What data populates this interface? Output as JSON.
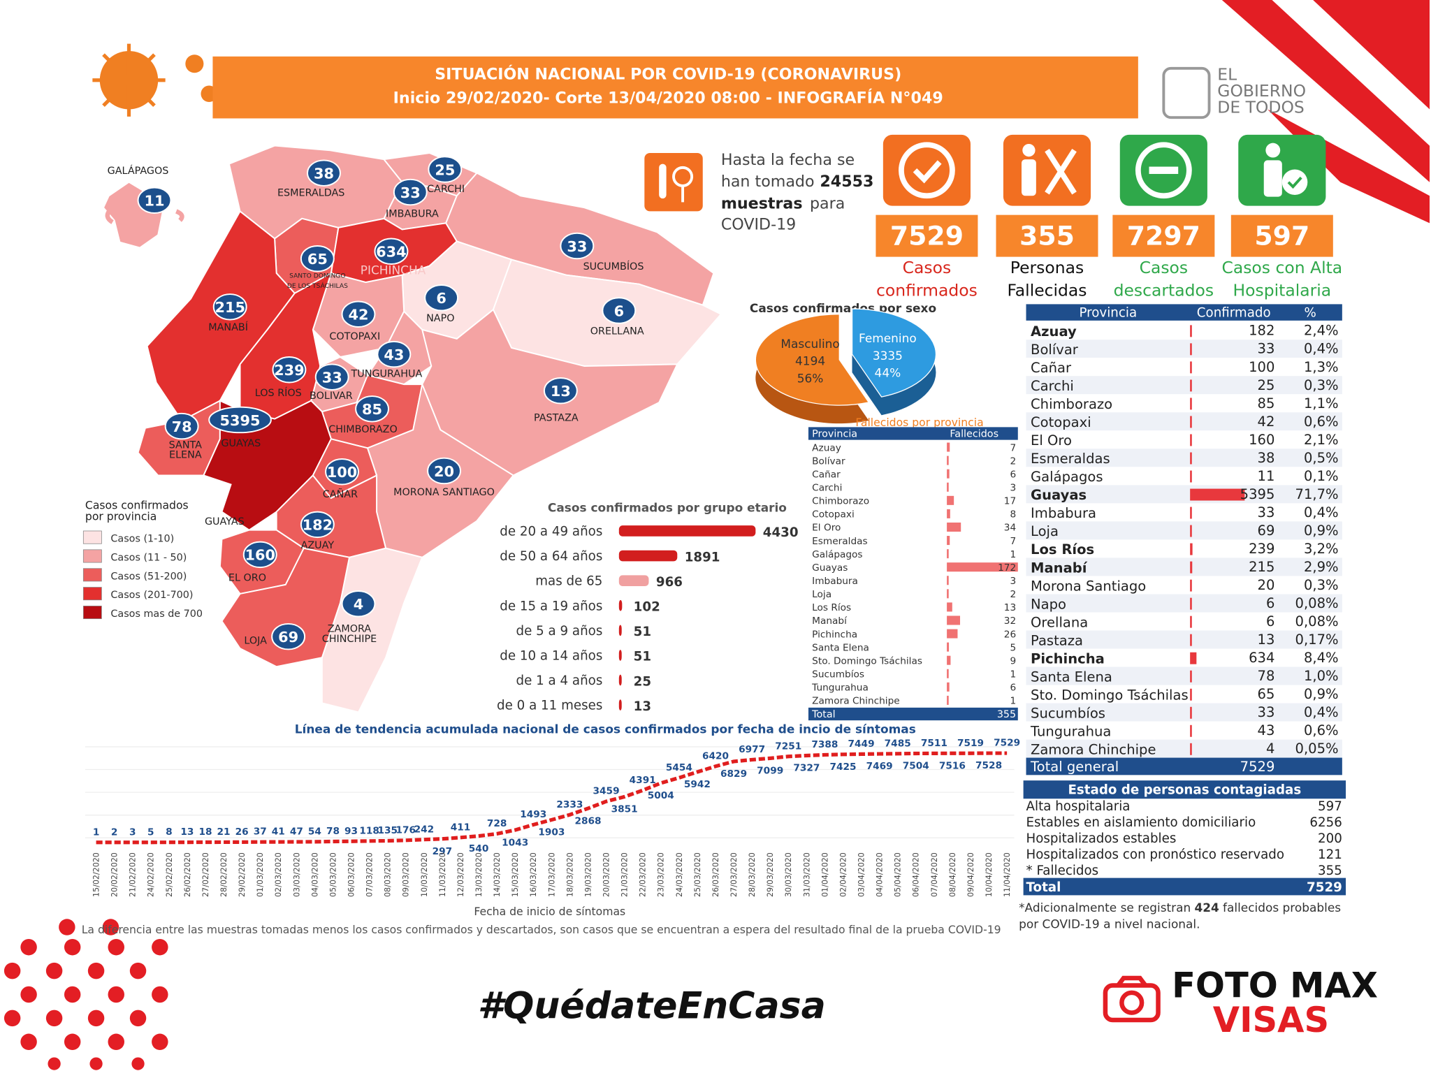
{
  "header": {
    "title": "SITUACIÓN NACIONAL POR  COVID-19 (CORONAVIRUS)",
    "subtitle": "Inicio 29/02/2020- Corte 13/04/2020 08:00  - INFOGRAFÍA N°049"
  },
  "logo": {
    "lines": [
      "EL",
      "GOBIERNO",
      "DE TODOS"
    ]
  },
  "samples": {
    "line1": "Hasta la fecha se",
    "line2": "han tomado",
    "value": 24553,
    "unit": "muestras",
    "after": "para",
    "line4": "COVID-19"
  },
  "stats": [
    {
      "value": 7529,
      "label": [
        "Casos",
        "confirmados"
      ],
      "color": "#f26f21",
      "label_color": "#d8261c"
    },
    {
      "value": 355,
      "label": [
        "Personas",
        "Fallecidas"
      ],
      "color": "#f26f21",
      "label_color": "#111111"
    },
    {
      "value": 7297,
      "label": [
        "Casos",
        "descartados"
      ],
      "color": "#2fa84a",
      "label_color": "#2fa84a"
    },
    {
      "value": 597,
      "label": [
        "Casos con Alta",
        "Hospitalaria"
      ],
      "color": "#2fa84a",
      "label_color": "#2fa84a"
    }
  ],
  "map": {
    "legend_title": [
      "Casos confirmados",
      "por provincia"
    ],
    "legend": [
      {
        "label": "Casos (1-10)",
        "range": [
          1,
          10
        ],
        "color": "#fde3e3"
      },
      {
        "label": "Casos (11 - 50)",
        "range": [
          11,
          50
        ],
        "color": "#f4a3a3"
      },
      {
        "label": "Casos (51-200)",
        "range": [
          51,
          200
        ],
        "color": "#ec5d5b"
      },
      {
        "label": "Casos (201-700)",
        "range": [
          201,
          700
        ],
        "color": "#e3302f"
      },
      {
        "label": "Casos mas de 700",
        "range": [
          700
        ],
        "color": "#b80d12"
      }
    ],
    "gulf_label": "GUAYAS",
    "provinces": [
      {
        "name": "GALÁPAGOS",
        "value": 11
      },
      {
        "name": "ESMERALDAS",
        "value": 38
      },
      {
        "name": "CARCHI",
        "value": 25
      },
      {
        "name": "IMBABURA",
        "value": 33
      },
      {
        "name": "SUCUMBÍOS",
        "value": 33
      },
      {
        "name": [
          "SANTO DOMINGO",
          "DE LOS TSÁCHILAS"
        ],
        "value": 65
      },
      {
        "name": "PICHINCHA",
        "value": 634
      },
      {
        "name": "NAPO",
        "value": 6
      },
      {
        "name": "ORELLANA",
        "value": 6
      },
      {
        "name": "MANABÍ",
        "value": 215
      },
      {
        "name": "COTOPAXI",
        "value": 42
      },
      {
        "name": "TUNGURAHUA",
        "value": 43
      },
      {
        "name": "LOS RÍOS",
        "value": 239
      },
      {
        "name": "BOLIVAR",
        "value": 33
      },
      {
        "name": "PASTAZA",
        "value": 13
      },
      {
        "name": "CHIMBORAZO",
        "value": 85
      },
      {
        "name": [
          "SANTA",
          "ELENA"
        ],
        "value": 78
      },
      {
        "name": "GUAYAS",
        "value": 5395
      },
      {
        "name": "CAÑAR",
        "value": 100
      },
      {
        "name": "MORONA SANTIAGO",
        "value": 20
      },
      {
        "name": "AZUAY",
        "value": 182
      },
      {
        "name": "EL ORO",
        "value": 160
      },
      {
        "name": [
          "ZAMORA",
          "CHINCHIPE"
        ],
        "value": 4
      },
      {
        "name": "LOJA",
        "value": 69
      }
    ]
  },
  "chart_data": [
    {
      "type": "pie",
      "title": "Casos confirmados por sexo",
      "categories": [
        "Masculino",
        "Femenino"
      ],
      "values": [
        4194,
        3335
      ],
      "percentages": [
        {
          "value": 56,
          "label": "56%"
        },
        {
          "value": 44,
          "label": "44%"
        }
      ],
      "colors": [
        "#f07f22",
        "#2e9be0"
      ]
    },
    {
      "type": "bar",
      "title": "Casos confirmados por grupo etario",
      "categories": [
        "de 20 a 49 años",
        "de 50 a 64 años",
        "mas de 65",
        "de 15 a 19 años",
        "de 5 a 9 años",
        "de 10 a 14 años",
        "de 1 a 4 años",
        "de 0 a 11 meses"
      ],
      "values": [
        4430,
        1891,
        966,
        102,
        51,
        51,
        25,
        13
      ],
      "color": "#d21e1e"
    },
    {
      "type": "bar",
      "title": "Fallecidos por provincia",
      "headers": [
        "Provincia",
        "Fallecidos"
      ],
      "categories": [
        "Azuay",
        "Bolívar",
        "Cañar",
        "Carchi",
        "Chimborazo",
        "Cotopaxi",
        "El Oro",
        "Esmeraldas",
        "Galápagos",
        "Guayas",
        "Imbabura",
        "Loja",
        "Los Ríos",
        "Manabí",
        "Pichincha",
        "Santa Elena",
        "Sto. Domingo Tsáchilas",
        "Sucumbíos",
        "Tungurahua",
        "Zamora Chinchipe"
      ],
      "values": [
        7,
        2,
        6,
        3,
        17,
        8,
        34,
        7,
        1,
        172,
        3,
        2,
        13,
        32,
        26,
        5,
        9,
        1,
        6,
        1
      ],
      "total_label": "Total",
      "total": 355,
      "color": "#f07272"
    },
    {
      "type": "line",
      "title": "Línea de tendencia acumulada nacional de casos confirmados por fecha de incio de síntomas",
      "x_label": "Fecha de inicio de síntomas",
      "color": "#e01e1e",
      "x": [
        "15/02/2020",
        "20/02/2020",
        "21/02/2020",
        "24/02/2020",
        "25/02/2020",
        "26/02/2020",
        "27/02/2020",
        "28/02/2020",
        "29/02/2020",
        "01/03/2020",
        "02/03/2020",
        "03/03/2020",
        "04/03/2020",
        "05/03/2020",
        "06/03/2020",
        "07/03/2020",
        "08/03/2020",
        "09/03/2020",
        "10/03/2020",
        "11/03/2020",
        "12/03/2020",
        "13/03/2020",
        "14/03/2020",
        "15/03/2020",
        "16/03/2020",
        "17/03/2020",
        "18/03/2020",
        "19/03/2020",
        "20/03/2020",
        "21/03/2020",
        "22/03/2020",
        "23/03/2020",
        "24/03/2020",
        "25/03/2020",
        "26/03/2020",
        "27/03/2020",
        "28/03/2020",
        "29/03/2020",
        "30/03/2020",
        "31/03/2020",
        "01/04/2020",
        "02/04/2020",
        "03/04/2020",
        "04/04/2020",
        "05/04/2020",
        "06/04/2020",
        "07/04/2020",
        "08/04/2020",
        "09/04/2020",
        "10/04/2020",
        "11/04/2020"
      ],
      "values": [
        1,
        2,
        3,
        5,
        8,
        13,
        18,
        21,
        26,
        37,
        41,
        47,
        54,
        78,
        93,
        118,
        135,
        176,
        242,
        297,
        411,
        540,
        728,
        1043,
        1493,
        1903,
        2333,
        2868,
        3459,
        3851,
        4391,
        5004,
        5454,
        5942,
        6420,
        6829,
        6977,
        7099,
        7251,
        7327,
        7388,
        7425,
        7449,
        7469,
        7485,
        7504,
        7511,
        7516,
        7519,
        7528,
        7529
      ]
    }
  ],
  "table": {
    "headers": [
      "Provincia",
      "Confirmado",
      "%"
    ],
    "rows": [
      {
        "name": "Azuay",
        "confirmed": 182,
        "percent": "2,4%"
      },
      {
        "name": "Bolívar",
        "confirmed": 33,
        "percent": "0,4%"
      },
      {
        "name": "Cañar",
        "confirmed": 100,
        "percent": "1,3%"
      },
      {
        "name": "Carchi",
        "confirmed": 25,
        "percent": "0,3%"
      },
      {
        "name": "Chimborazo",
        "confirmed": 85,
        "percent": "1,1%"
      },
      {
        "name": "Cotopaxi",
        "confirmed": 42,
        "percent": "0,6%"
      },
      {
        "name": "El Oro",
        "confirmed": 160,
        "percent": "2,1%"
      },
      {
        "name": "Esmeraldas",
        "confirmed": 38,
        "percent": "0,5%"
      },
      {
        "name": "Galápagos",
        "confirmed": 11,
        "percent": "0,1%"
      },
      {
        "name": "Guayas",
        "confirmed": 5395,
        "percent": "71,7%"
      },
      {
        "name": "Imbabura",
        "confirmed": 33,
        "percent": "0,4%"
      },
      {
        "name": "Loja",
        "confirmed": 69,
        "percent": "0,9%"
      },
      {
        "name": "Los Ríos",
        "confirmed": 239,
        "percent": "3,2%"
      },
      {
        "name": "Manabí",
        "confirmed": 215,
        "percent": "2,9%"
      },
      {
        "name": "Morona Santiago",
        "confirmed": 20,
        "percent": "0,3%"
      },
      {
        "name": "Napo",
        "confirmed": 6,
        "percent": "0,08%"
      },
      {
        "name": "Orellana",
        "confirmed": 6,
        "percent": "0,08%"
      },
      {
        "name": "Pastaza",
        "confirmed": 13,
        "percent": "0,17%"
      },
      {
        "name": "Pichincha",
        "confirmed": 634,
        "percent": "8,4%"
      },
      {
        "name": "Santa Elena",
        "confirmed": 78,
        "percent": "1,0%"
      },
      {
        "name": "Sto. Domingo Tsáchilas",
        "confirmed": 65,
        "percent": "0,9%"
      },
      {
        "name": "Sucumbíos",
        "confirmed": 33,
        "percent": "0,4%"
      },
      {
        "name": "Tungurahua",
        "confirmed": 43,
        "percent": "0,6%"
      },
      {
        "name": "Zamora Chinchipe",
        "confirmed": 4,
        "percent": "0,05%"
      }
    ],
    "total_label": "Total general",
    "total": 7529
  },
  "status": {
    "title": "Estado de personas contagiadas",
    "rows": [
      {
        "label": "Alta hospitalaria",
        "value": 597
      },
      {
        "label": "Estables en aislamiento domiciliario",
        "value": 6256
      },
      {
        "label": "Hospitalizados estables",
        "value": 200
      },
      {
        "label": "Hospitalizados con pronóstico reservado",
        "value": 121
      },
      {
        "label": "* Fallecidos",
        "value": 355
      }
    ],
    "total_label": "Total",
    "total": 7529
  },
  "footnote": {
    "before": "*Adicionalmente se registran",
    "value": 424,
    "after": "fallecidos probables",
    "line2": "por COVID-19 a nivel nacional."
  },
  "note": "La diferencia entre las muestras tomadas menos los casos confirmados y descartados, son casos que se encuentran a espera del resultado final de la prueba COVID-19",
  "hashtag": "#QuédateEnCasa",
  "brand": {
    "line1": "FOTO MAX",
    "line2": "VISAS"
  }
}
